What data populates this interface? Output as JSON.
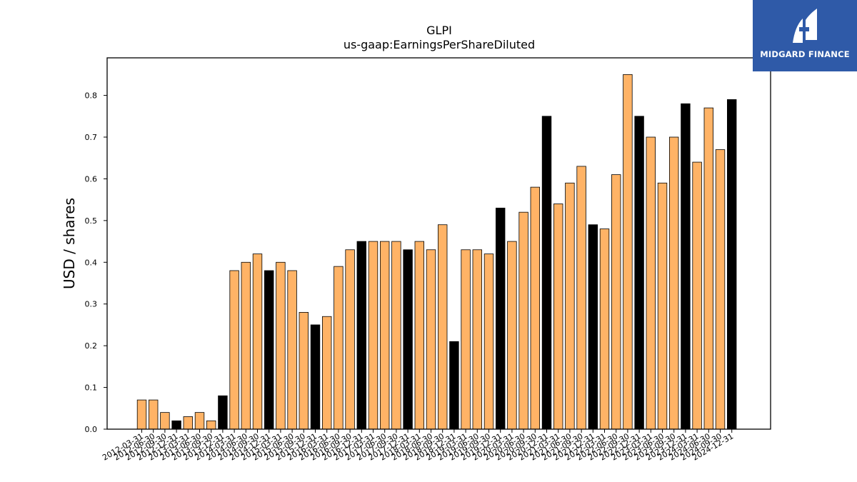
{
  "chart_data": {
    "type": "bar",
    "title": "GLPI",
    "subtitle": "us-gaap:EarningsPerShareDiluted",
    "xlabel": "",
    "ylabel": "USD / shares",
    "ylim": [
      0,
      0.89
    ],
    "yticks": [
      "0.0",
      "0.1",
      "0.2",
      "0.3",
      "0.4",
      "0.5",
      "0.6",
      "0.7",
      "0.8"
    ],
    "grid": false,
    "legend": "none",
    "colors": {
      "quarterly": "#ffb366",
      "annual": "#000000",
      "edge": "#000000"
    },
    "categories": [
      "2012-03-31",
      "2012-06-30",
      "2012-09-30",
      "2012-12-31",
      "2013-03-31",
      "2013-06-30",
      "2013-09-30",
      "2013-12-31",
      "2014-03-31",
      "2014-06-30",
      "2014-09-30",
      "2014-12-31",
      "2015-03-31",
      "2015-06-30",
      "2015-09-30",
      "2015-12-31",
      "2016-03-31",
      "2016-06-30",
      "2016-09-30",
      "2016-12-31",
      "2017-03-31",
      "2017-06-30",
      "2017-09-30",
      "2017-12-31",
      "2018-03-31",
      "2018-06-30",
      "2018-09-30",
      "2018-12-31",
      "2019-03-31",
      "2019-06-30",
      "2019-09-30",
      "2019-12-31",
      "2020-03-31",
      "2020-06-30",
      "2020-09-30",
      "2020-12-31",
      "2021-03-31",
      "2021-06-30",
      "2021-09-30",
      "2021-12-31",
      "2022-03-31",
      "2022-06-30",
      "2022-09-30",
      "2022-12-31",
      "2023-03-31",
      "2023-06-30",
      "2023-09-30",
      "2023-12-31",
      "2024-03-31",
      "2024-06-30",
      "2024-09-30",
      "2024-12-31"
    ],
    "values": [
      0.07,
      0.07,
      0.04,
      0.02,
      0.03,
      0.04,
      0.02,
      0.08,
      0.38,
      0.4,
      0.42,
      0.38,
      0.4,
      0.38,
      0.28,
      0.25,
      0.27,
      0.39,
      0.43,
      0.45,
      0.45,
      0.45,
      0.45,
      0.43,
      0.45,
      0.43,
      0.49,
      0.21,
      0.43,
      0.43,
      0.42,
      0.53,
      0.45,
      0.52,
      0.58,
      0.75,
      0.54,
      0.59,
      0.63,
      0.49,
      0.48,
      0.61,
      0.85,
      0.75,
      0.7,
      0.59,
      0.7,
      0.78,
      0.64,
      0.77,
      0.67,
      0.79
    ],
    "annual": [
      false,
      false,
      false,
      true,
      false,
      false,
      false,
      true,
      false,
      false,
      false,
      true,
      false,
      false,
      false,
      true,
      false,
      false,
      false,
      true,
      false,
      false,
      false,
      true,
      false,
      false,
      false,
      true,
      false,
      false,
      false,
      true,
      false,
      false,
      false,
      true,
      false,
      false,
      false,
      true,
      false,
      false,
      false,
      true,
      false,
      false,
      false,
      true,
      false,
      false,
      false,
      true
    ]
  },
  "logo": {
    "text": "MIDGARD FINANCE",
    "icon": "midgard-logo-icon",
    "background": "#2f5aa8"
  }
}
